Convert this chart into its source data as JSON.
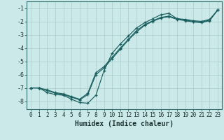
{
  "xlabel": "Humidex (Indice chaleur)",
  "background_color": "#cce9e9",
  "grid_color": "#aacccc",
  "line_color": "#1a6060",
  "xlim": [
    -0.5,
    23.5
  ],
  "ylim": [
    -8.6,
    -0.5
  ],
  "xticks": [
    0,
    1,
    2,
    3,
    4,
    5,
    6,
    7,
    8,
    9,
    10,
    11,
    12,
    13,
    14,
    15,
    16,
    17,
    18,
    19,
    20,
    21,
    22,
    23
  ],
  "yticks": [
    -8,
    -7,
    -6,
    -5,
    -4,
    -3,
    -2,
    -1
  ],
  "line1_x": [
    0,
    1,
    2,
    3,
    4,
    5,
    6,
    7,
    8,
    9,
    10,
    11,
    12,
    13,
    14,
    15,
    16,
    17,
    18,
    19,
    20,
    21,
    22,
    23
  ],
  "line1_y": [
    -7.0,
    -7.0,
    -7.35,
    -7.5,
    -7.55,
    -7.85,
    -8.1,
    -8.15,
    -7.55,
    -5.7,
    -4.4,
    -3.7,
    -3.1,
    -2.5,
    -2.1,
    -1.8,
    -1.5,
    -1.4,
    -1.8,
    -1.85,
    -1.95,
    -2.0,
    -1.85,
    -1.15
  ],
  "line2_x": [
    0,
    1,
    2,
    3,
    4,
    5,
    6,
    7,
    8,
    9,
    10,
    11,
    12,
    13,
    14,
    15,
    16,
    17,
    18,
    19,
    20,
    21,
    22,
    23
  ],
  "line2_y": [
    -7.0,
    -7.0,
    -7.2,
    -7.4,
    -7.5,
    -7.7,
    -7.9,
    -7.5,
    -6.0,
    -5.5,
    -4.8,
    -4.1,
    -3.4,
    -2.8,
    -2.3,
    -2.0,
    -1.75,
    -1.65,
    -1.85,
    -1.95,
    -2.05,
    -2.1,
    -1.95,
    -1.15
  ],
  "line3_x": [
    0,
    1,
    2,
    3,
    4,
    5,
    6,
    7,
    8,
    9,
    10,
    11,
    12,
    13,
    14,
    15,
    16,
    17,
    18,
    19,
    20,
    21,
    22,
    23
  ],
  "line3_y": [
    -7.0,
    -7.0,
    -7.15,
    -7.35,
    -7.45,
    -7.65,
    -7.85,
    -7.4,
    -5.85,
    -5.4,
    -4.7,
    -4.0,
    -3.35,
    -2.7,
    -2.25,
    -1.95,
    -1.7,
    -1.6,
    -1.8,
    -1.9,
    -2.0,
    -2.05,
    -1.9,
    -1.15
  ]
}
